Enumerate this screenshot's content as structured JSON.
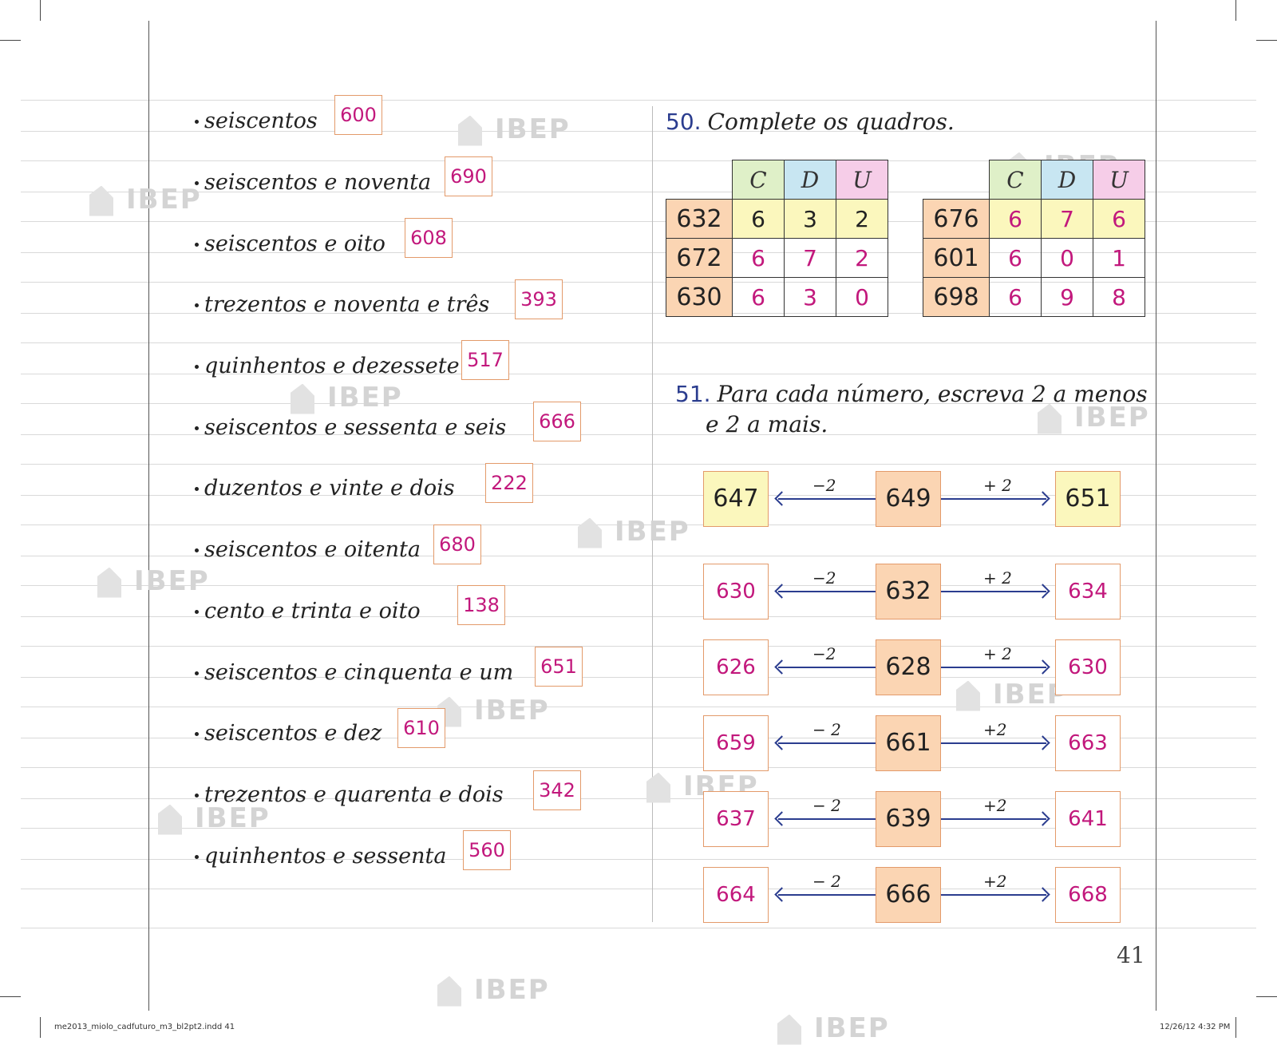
{
  "exercise_list": {
    "items": [
      {
        "words": "seiscentos",
        "answer": "600"
      },
      {
        "words": "seiscentos e noventa",
        "answer": "690"
      },
      {
        "words": "seiscentos e oito",
        "answer": "608"
      },
      {
        "words": "trezentos e noventa e três",
        "answer": "393"
      },
      {
        "words": "quinhentos e dezessete",
        "answer": "517"
      },
      {
        "words": "seiscentos e sessenta e seis",
        "answer": "666"
      },
      {
        "words": "duzentos e vinte e dois",
        "answer": "222"
      },
      {
        "words": "seiscentos e oitenta",
        "answer": "680"
      },
      {
        "words": "cento e trinta e oito",
        "answer": "138"
      },
      {
        "words": "seiscentos e cinquenta e um",
        "answer": "651"
      },
      {
        "words": "seiscentos e dez",
        "answer": "610"
      },
      {
        "words": "trezentos e quarenta e dois",
        "answer": "342"
      },
      {
        "words": "quinhentos e sessenta",
        "answer": "560"
      }
    ]
  },
  "ex50": {
    "number": "50.",
    "title": "Complete os quadros.",
    "headers": [
      "C",
      "D",
      "U"
    ],
    "table1": [
      {
        "n": "632",
        "c": "6",
        "d": "3",
        "u": "2"
      },
      {
        "n": "672",
        "c": "6",
        "d": "7",
        "u": "2"
      },
      {
        "n": "630",
        "c": "6",
        "d": "3",
        "u": "0"
      }
    ],
    "table2": [
      {
        "n": "676",
        "c": "6",
        "d": "7",
        "u": "6"
      },
      {
        "n": "601",
        "c": "6",
        "d": "0",
        "u": "1"
      },
      {
        "n": "698",
        "c": "6",
        "d": "9",
        "u": "8"
      }
    ]
  },
  "ex51": {
    "number": "51.",
    "title_line1": "Para cada número, escreva 2 a menos",
    "title_line2": "e 2 a mais.",
    "rows": [
      {
        "less": "647",
        "center": "649",
        "more": "651",
        "minus_label": "−2",
        "plus_label": "+ 2"
      },
      {
        "less": "630",
        "center": "632",
        "more": "634",
        "minus_label": "−2",
        "plus_label": "+ 2"
      },
      {
        "less": "626",
        "center": "628",
        "more": "630",
        "minus_label": "−2",
        "plus_label": "+ 2"
      },
      {
        "less": "659",
        "center": "661",
        "more": "663",
        "minus_label": "− 2",
        "plus_label": "+2"
      },
      {
        "less": "637",
        "center": "639",
        "more": "641",
        "minus_label": "− 2",
        "plus_label": "+2"
      },
      {
        "less": "664",
        "center": "666",
        "more": "668",
        "minus_label": "− 2",
        "plus_label": "+2"
      }
    ]
  },
  "page_number": "41",
  "footer": {
    "file": "me2013_miolo_cadfuturo_m3_bl2pt2.indd   41",
    "date": "12/26/12   4:32 PM"
  },
  "watermark": "IBEP",
  "colors": {
    "answer_pink": "#c2187c",
    "box_border": "#e39a6a",
    "header_c": "#dff0c8",
    "header_d": "#c8e6f2",
    "header_u": "#f6cde8",
    "yellow_fill": "#fbf7bd",
    "orange_fill": "#fbd5b3",
    "arrow_blue": "#2b3d8f"
  }
}
